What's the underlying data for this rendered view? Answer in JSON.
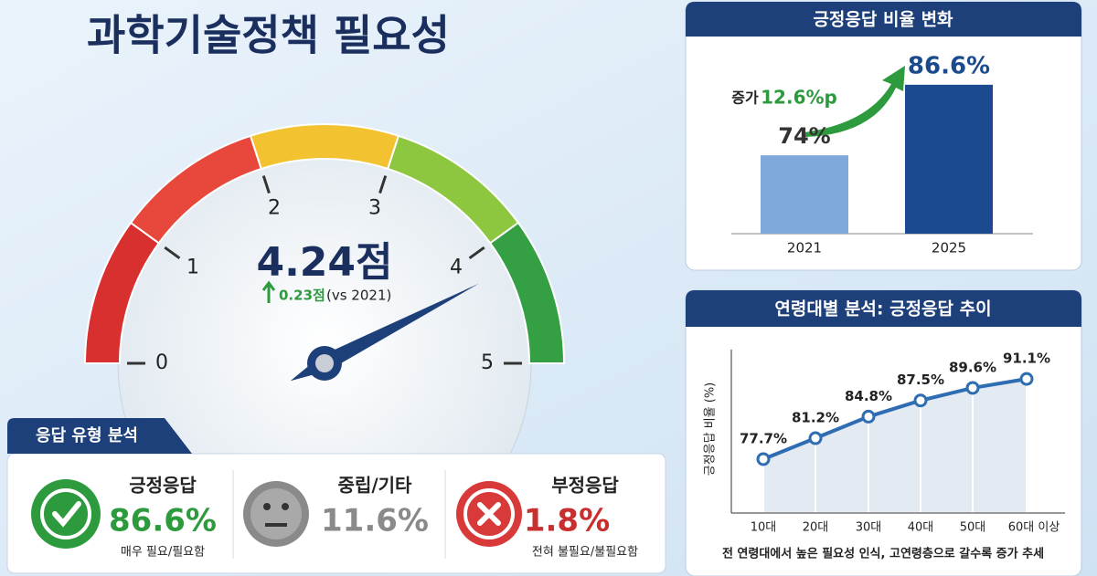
{
  "title": "과학기술정책 필요성",
  "chart_data": [
    {
      "type": "gauge",
      "value": 4.24,
      "value_label": "4.24점",
      "change": "0.23점",
      "change_note": "(vs 2021)",
      "xlim": [
        0,
        5
      ],
      "xticks": [
        0,
        1,
        2,
        3,
        4,
        5
      ],
      "band_colors": [
        "#d8302f",
        "#e8483c",
        "#f2c230",
        "#8dc63f",
        "#35a043"
      ],
      "color": "#1d3f7a"
    },
    {
      "type": "bar",
      "title": "긍정응답 비율 변화",
      "categories": [
        "2021",
        "2025"
      ],
      "values": [
        74,
        86.6
      ],
      "value_labels": [
        "74%",
        "86.6%"
      ],
      "colors": [
        "#7ea9d8",
        "#1b4a8e"
      ],
      "ylim": [
        60,
        90
      ],
      "annotation": {
        "label": "증가",
        "value": "12.6%p"
      }
    },
    {
      "type": "line",
      "title": "연령대별 분석: 긍정응답 추이",
      "ylabel": "긍정응답 비율 (%)",
      "categories": [
        "10대",
        "20대",
        "30대",
        "40대",
        "50대",
        "60대 이상"
      ],
      "values": [
        77.7,
        81.2,
        84.8,
        87.5,
        89.6,
        91.1
      ],
      "value_labels": [
        "77.7%",
        "81.2%",
        "84.8%",
        "87.5%",
        "89.6%",
        "91.1%"
      ],
      "ylim": [
        69,
        96
      ],
      "color": "#2f6db3",
      "caption": "전 연령대에서 높은 필요성 인식, 고연령층으로 갈수록 증가 추세"
    }
  ],
  "response_types": {
    "title": "응답 유형 분석",
    "items": [
      {
        "label": "긍정응답",
        "value": "86.6%",
        "desc": "매우 필요/필요함"
      },
      {
        "label": "중립/기타",
        "value": "11.6%"
      },
      {
        "label": "부정응답",
        "value": "1.8%",
        "desc": "전혀 불필요/불필요함"
      }
    ]
  }
}
